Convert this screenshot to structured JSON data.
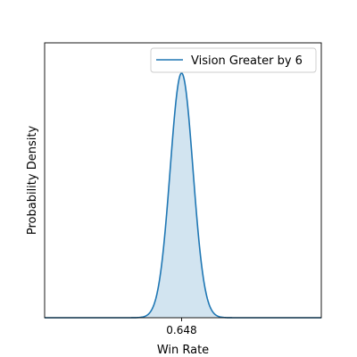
{
  "chart_data": {
    "type": "area",
    "title": "",
    "xlabel": "Win Rate",
    "ylabel": "Probability Density",
    "xlim": [
      0.45,
      0.85
    ],
    "ylim": [
      0,
      1.0
    ],
    "x_ticks": [
      0.648
    ],
    "x_tick_labels": [
      "0.648"
    ],
    "y_ticks": [],
    "grid": false,
    "legend": {
      "position": "top-right",
      "entries": [
        "Vision Greater by 6"
      ]
    },
    "series": [
      {
        "name": "Vision Greater by 6",
        "color": "#1f77b4",
        "fill_color": "#1f77b4",
        "fill_opacity": 0.2,
        "distribution": "normal",
        "mean": 0.648,
        "std": 0.0165,
        "peak": 0.89,
        "x": [
          0.598,
          0.606,
          0.614,
          0.622,
          0.628,
          0.634,
          0.638,
          0.642,
          0.645,
          0.648,
          0.651,
          0.654,
          0.658,
          0.662,
          0.668,
          0.674,
          0.682,
          0.69,
          0.698
        ],
        "y": [
          0.01,
          0.04,
          0.11,
          0.26,
          0.42,
          0.62,
          0.74,
          0.83,
          0.87,
          0.89,
          0.87,
          0.83,
          0.74,
          0.62,
          0.42,
          0.26,
          0.11,
          0.04,
          0.01
        ]
      }
    ]
  }
}
